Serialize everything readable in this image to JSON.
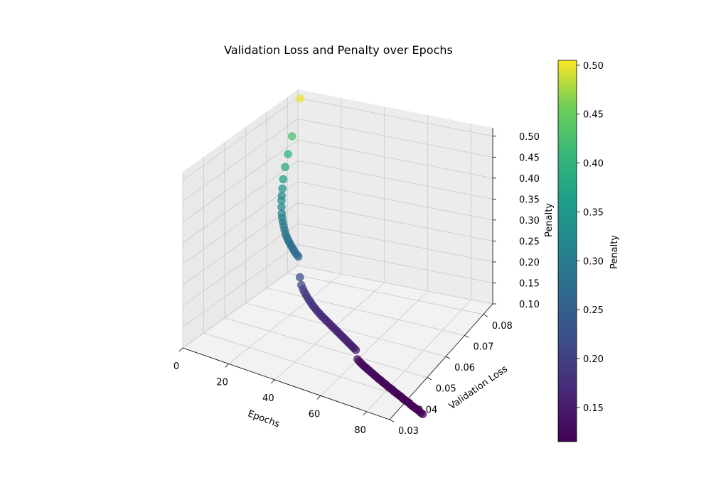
{
  "chart_data": {
    "type": "scatter",
    "title": "Validation Loss and Penalty over Epochs",
    "xlabel": "Epochs",
    "ylabel": "Validation Loss",
    "zlabel": "Penalty",
    "colorbar_label": "Penalty",
    "colormap": "viridis",
    "xlim": [
      0,
      90
    ],
    "ylim": [
      0.03,
      0.085
    ],
    "zlim": [
      0.1,
      0.52
    ],
    "x_ticks": [
      "0",
      "20",
      "40",
      "60",
      "80"
    ],
    "y_ticks": [
      "0.03",
      "0.04",
      "0.05",
      "0.06",
      "0.07",
      "0.08"
    ],
    "z_ticks": [
      "0.10",
      "0.15",
      "0.20",
      "0.25",
      "0.30",
      "0.35",
      "0.40",
      "0.45",
      "0.50"
    ],
    "colorbar_ticks": [
      "0.15",
      "0.20",
      "0.25",
      "0.30",
      "0.35",
      "0.40",
      "0.45",
      "0.50"
    ],
    "colorbar_range": [
      0.115,
      0.505
    ],
    "grid": true,
    "series": [
      {
        "epochs": [
          1,
          2,
          3,
          4,
          5,
          6,
          7,
          8,
          9,
          10,
          11,
          12,
          13,
          14,
          15,
          16,
          17,
          18,
          19,
          20,
          21,
          22,
          23,
          24,
          25,
          26,
          27,
          28,
          29,
          30,
          31,
          32,
          33,
          34,
          35,
          36,
          37,
          38,
          39,
          40,
          41,
          42,
          43,
          44,
          45,
          46,
          47,
          48,
          49,
          50,
          51,
          52,
          53,
          54,
          55,
          56,
          57,
          58,
          59,
          60,
          61,
          62,
          63,
          64,
          65,
          66,
          67,
          68,
          69,
          70,
          71,
          72,
          73,
          74,
          75,
          76,
          77,
          78,
          79,
          80,
          81,
          82,
          83,
          84,
          85,
          86,
          87,
          88,
          89,
          90,
          91,
          92,
          93,
          94,
          95,
          96,
          97,
          98,
          99,
          100
        ],
        "validation_loss": [
          0.085,
          0.08,
          0.077,
          0.0745,
          0.0725,
          0.071,
          0.0696,
          0.0684,
          0.0673,
          0.0663,
          0.0654,
          0.0646,
          0.0639,
          0.0632,
          0.0626,
          0.062,
          0.0614,
          0.0609,
          0.0604,
          0.0599,
          0.0595,
          0.059,
          0.0586,
          0.0582,
          0.0578,
          0.0574,
          0.057,
          0.0567,
          0.0563,
          0.056,
          0.0556,
          0.0553,
          0.055,
          0.0546,
          0.0543,
          0.054,
          0.0537,
          0.0534,
          0.0531,
          0.0528,
          0.0525,
          0.0522,
          0.0519,
          0.0516,
          0.0513,
          0.051,
          0.0507,
          0.0504,
          0.0501,
          0.0498,
          0.0495,
          0.0492,
          0.0489,
          0.0486,
          0.0483,
          0.048,
          0.0477,
          0.0474,
          0.0471,
          0.0468,
          0.0465,
          0.0462,
          0.0459,
          0.0456,
          0.0453,
          0.045,
          0.0447,
          0.0444,
          0.0441,
          0.0438,
          0.0435,
          0.0432,
          0.0429,
          0.0426,
          0.0423,
          0.042,
          0.0417,
          0.0414,
          0.0411,
          0.0408,
          0.0405,
          0.0402,
          0.0399,
          0.0396,
          0.0393,
          0.039,
          0.0387,
          0.0384,
          0.0381,
          0.0378,
          0.0375,
          0.0372,
          0.0369,
          0.0366,
          0.0363,
          0.036,
          0.0357,
          0.0354,
          0.0351,
          0.0348
        ],
        "penalty": [
          0.5,
          0.43,
          0.4,
          0.38,
          0.36,
          0.345,
          0.335,
          0.33,
          0.32,
          0.31,
          0.305,
          0.3,
          0.295,
          0.29,
          0.285,
          0.282,
          0.28,
          0.278,
          0.276,
          0.274,
          0.272,
          0.27,
          0.268,
          0.267,
          0.266,
          0.22,
          0.205,
          0.198,
          0.194,
          0.19,
          0.187,
          0.184,
          0.181,
          0.179,
          0.177,
          0.175,
          0.173,
          0.172,
          0.17,
          0.169,
          0.168,
          0.167,
          0.166,
          0.165,
          0.164,
          0.163,
          0.162,
          0.161,
          0.16,
          0.159,
          0.158,
          0.157,
          0.156,
          0.155,
          0.154,
          0.153,
          0.152,
          0.151,
          0.15,
          0.149,
          0.13,
          0.128,
          0.127,
          0.126,
          0.125,
          0.125,
          0.124,
          0.124,
          0.123,
          0.123,
          0.122,
          0.122,
          0.121,
          0.121,
          0.121,
          0.12,
          0.12,
          0.12,
          0.119,
          0.119,
          0.119,
          0.119,
          0.118,
          0.118,
          0.118,
          0.118,
          0.118,
          0.117,
          0.117,
          0.117,
          0.117,
          0.117,
          0.116,
          0.116,
          0.116,
          0.116,
          0.116,
          0.116,
          0.115,
          0.115
        ]
      }
    ]
  }
}
